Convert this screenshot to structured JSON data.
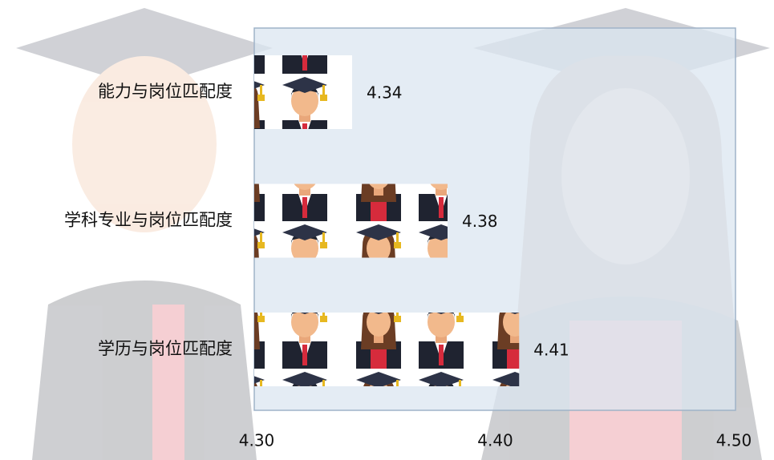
{
  "chart_data": {
    "type": "bar",
    "orientation": "horizontal",
    "categories": [
      "能力与岗位匹配度",
      "学科专业与岗位匹配度",
      "学历与岗位匹配度"
    ],
    "values": [
      4.34,
      4.38,
      4.41
    ],
    "xlim": [
      4.3,
      4.5
    ],
    "xticks": [
      {
        "value": 4.3,
        "label": "4.30"
      },
      {
        "value": 4.4,
        "label": "4.40"
      },
      {
        "value": 4.5,
        "label": "4.50"
      }
    ],
    "grid": false
  }
}
